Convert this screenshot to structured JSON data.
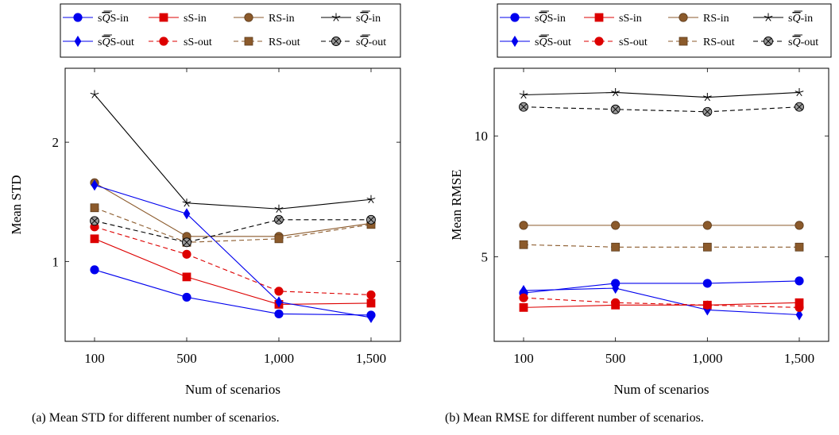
{
  "captions": [
    "(a)  Mean STD for different number of scenarios.",
    "(b)  Mean RMSE for different number of scenarios."
  ],
  "series_styles": [
    {
      "key": "sQS-in",
      "color": "#0000ee",
      "marker": "circle",
      "dash": false
    },
    {
      "key": "sS-in",
      "color": "#dd0000",
      "marker": "square",
      "dash": false
    },
    {
      "key": "RS-in",
      "color": "#8b5a2b",
      "marker": "circle",
      "dash": false
    },
    {
      "key": "RQ-in",
      "color": "#000000",
      "marker": "star",
      "dash": false
    },
    {
      "key": "sQS-out",
      "color": "#0000ee",
      "marker": "diamond",
      "dash": false
    },
    {
      "key": "sS-out",
      "color": "#dd0000",
      "marker": "circle",
      "dash": true
    },
    {
      "key": "RS-out",
      "color": "#8b5a2b",
      "marker": "square",
      "dash": true
    },
    {
      "key": "RQ-out",
      "color": "#000000",
      "marker": "otimes",
      "dash": true
    }
  ],
  "chart_data": [
    {
      "type": "line",
      "xlabel": "Num of scenarios",
      "ylabel": "Mean STD",
      "categories": [
        "100",
        "500",
        "1,000",
        "1,500"
      ],
      "yticks": [
        1,
        2
      ],
      "ylim": [
        0.33,
        2.62
      ],
      "legend_position": "top",
      "series": [
        {
          "name": "sQS-in",
          "values": [
            0.93,
            0.7,
            0.56,
            0.55
          ]
        },
        {
          "name": "sS-in",
          "values": [
            1.19,
            0.87,
            0.64,
            0.65
          ]
        },
        {
          "name": "RS-in",
          "values": [
            1.66,
            1.21,
            1.21,
            1.32
          ]
        },
        {
          "name": "RQ-in",
          "values": [
            2.4,
            1.49,
            1.44,
            1.52
          ]
        },
        {
          "name": "sQS-out",
          "values": [
            1.64,
            1.4,
            0.66,
            0.53
          ]
        },
        {
          "name": "sS-out",
          "values": [
            1.29,
            1.06,
            0.75,
            0.72
          ]
        },
        {
          "name": "RS-out",
          "values": [
            1.45,
            1.16,
            1.19,
            1.31
          ]
        },
        {
          "name": "RQ-out",
          "values": [
            1.34,
            1.16,
            1.35,
            1.35
          ]
        }
      ]
    },
    {
      "type": "line",
      "xlabel": "Num of scenarios",
      "ylabel": "Mean RMSE",
      "categories": [
        "100",
        "500",
        "1,000",
        "1,500"
      ],
      "yticks": [
        5,
        10
      ],
      "ylim": [
        1.5,
        12.8
      ],
      "legend_position": "top",
      "series": [
        {
          "name": "sQS-in",
          "values": [
            3.5,
            3.9,
            3.9,
            4.0
          ]
        },
        {
          "name": "sS-in",
          "values": [
            2.9,
            3.0,
            3.0,
            3.1
          ]
        },
        {
          "name": "RS-in",
          "values": [
            6.3,
            6.3,
            6.3,
            6.3
          ]
        },
        {
          "name": "RQ-in",
          "values": [
            11.7,
            11.8,
            11.6,
            11.8
          ]
        },
        {
          "name": "sQS-out",
          "values": [
            3.6,
            3.7,
            2.8,
            2.6
          ]
        },
        {
          "name": "sS-out",
          "values": [
            3.3,
            3.1,
            3.0,
            2.9
          ]
        },
        {
          "name": "RS-out",
          "values": [
            5.5,
            5.4,
            5.4,
            5.4
          ]
        },
        {
          "name": "RQ-out",
          "values": [
            11.2,
            11.1,
            11.0,
            11.2
          ]
        }
      ]
    }
  ]
}
